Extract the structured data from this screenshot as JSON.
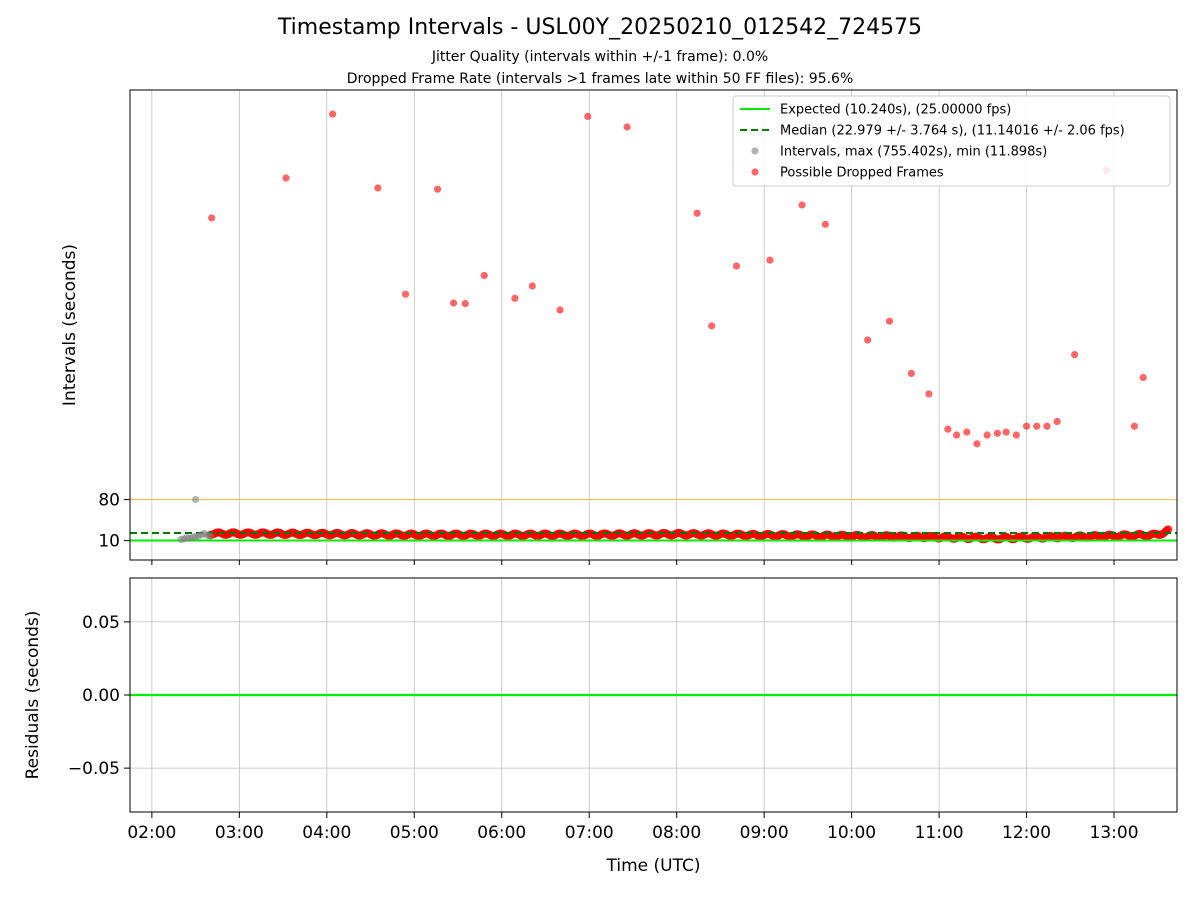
{
  "chart_data": [
    {
      "type": "scatter",
      "title": "Timestamp Intervals - USL00Y_20250210_012542_724575",
      "subtitle_1": "Jitter Quality (intervals within +/-1 frame): 0.0%",
      "subtitle_2": "Dropped Frame Rate (intervals >1 frames late within 50 FF files): 95.6%",
      "xlabel": "",
      "ylabel": "Intervals (seconds)",
      "x_tick_labels": [
        "02:00",
        "03:00",
        "04:00",
        "05:00",
        "06:00",
        "07:00",
        "08:00",
        "09:00",
        "10:00",
        "11:00",
        "12:00",
        "13:00"
      ],
      "y_tick_labels": [
        "10",
        "80"
      ],
      "yticks": [
        10,
        80
      ],
      "ylim": [
        -23,
        778
      ],
      "xlim_hours": [
        1.75,
        13.72
      ],
      "grid": "vertical",
      "legend_placement": "upper right",
      "legend": [
        "Expected (10.240s), (25.00000 fps)",
        "Median (22.979 +/- 3.764 s), (11.14016 +/- 2.06 fps)",
        "Intervals, max (755.402s), min (11.898s)",
        "Possible Dropped Frames"
      ],
      "expected_interval": 10.24,
      "median_interval": 22.979,
      "threshold_interval": 80,
      "colors": {
        "expected": "#00ee00",
        "median": "#007700",
        "threshold": "#ffc04d",
        "intervals": "#808080",
        "dropped": "#ff0000"
      },
      "series": [
        {
          "name": "Intervals, max (755.402s), min (11.898s)",
          "x": [
            "02:20",
            "02:22",
            "02:24",
            "02:26",
            "02:28",
            "02:30",
            "02:32",
            "02:34",
            "02:36",
            "02:38",
            "02:40",
            "02:30"
          ],
          "y": [
            12,
            13,
            15,
            14,
            16,
            17,
            18,
            20,
            22,
            19,
            18,
            80
          ]
        },
        {
          "name": "Possible Dropped Frames",
          "x": [
            "02:41",
            "03:32",
            "04:04",
            "04:35",
            "04:54",
            "05:16",
            "05:27",
            "05:35",
            "05:48",
            "06:09",
            "06:21",
            "06:40",
            "06:59",
            "07:26",
            "08:14",
            "08:24",
            "08:41",
            "09:04",
            "09:26",
            "09:42",
            "10:11",
            "10:26",
            "10:41",
            "10:53",
            "11:06",
            "11:12",
            "11:19",
            "11:26",
            "11:33",
            "11:40",
            "11:46",
            "11:53",
            "12:00",
            "12:07",
            "12:14",
            "12:21",
            "12:33",
            "12:55",
            "13:14",
            "13:20"
          ],
          "y": [
            560,
            628,
            737,
            611,
            430,
            609,
            415,
            414,
            462,
            423,
            444,
            403,
            733,
            715,
            568,
            376,
            478,
            488,
            582,
            549,
            352,
            384,
            295,
            260,
            200,
            190,
            195,
            175,
            190,
            193,
            195,
            190,
            205,
            205,
            205,
            213,
            327,
            641,
            205,
            288
          ]
        }
      ],
      "dense_band": [
        {
          "x": "02:40",
          "y": 22
        },
        {
          "x": "03:15",
          "y": 22
        },
        {
          "x": "05:00",
          "y": 20
        },
        {
          "x": "07:00",
          "y": 20
        },
        {
          "x": "08:00",
          "y": 21
        },
        {
          "x": "10:30",
          "y": 17
        },
        {
          "x": "11:40",
          "y": 14
        },
        {
          "x": "12:40",
          "y": 17
        },
        {
          "x": "13:30",
          "y": 20
        },
        {
          "x": "13:38",
          "y": 28
        }
      ]
    },
    {
      "type": "line",
      "xlabel": "Time (UTC)",
      "ylabel": "Residuals (seconds)",
      "x_tick_labels": [
        "02:00",
        "03:00",
        "04:00",
        "05:00",
        "06:00",
        "07:00",
        "08:00",
        "09:00",
        "10:00",
        "11:00",
        "12:00",
        "13:00"
      ],
      "y_tick_labels": [
        "0.05",
        "0.00",
        "−0.05"
      ],
      "yticks": [
        0.05,
        0.0,
        -0.05
      ],
      "ylim": [
        -0.08,
        0.08
      ],
      "grid": "both",
      "series": [
        {
          "name": "residuals",
          "x": [
            "01:45",
            "13:44"
          ],
          "y": [
            0.0,
            0.0
          ]
        }
      ]
    }
  ]
}
